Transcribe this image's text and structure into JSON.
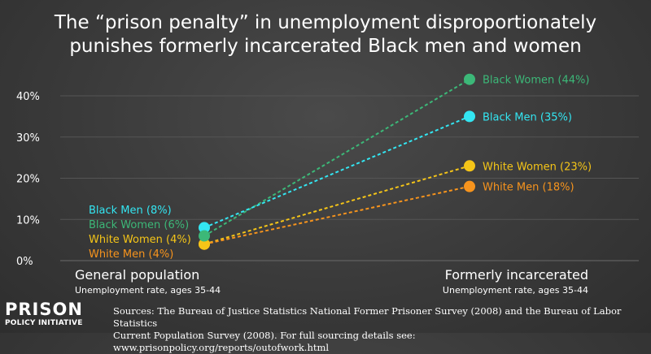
{
  "title_lines": [
    "The “prison penalty” in unemployment disproportionately",
    "punishes formerly incarcerated Black men and women"
  ],
  "chart_data": {
    "type": "line",
    "title": "The “prison penalty” in unemployment disproportionately punishes formerly incarcerated Black men and women",
    "ylim": [
      0,
      40
    ],
    "y_ticks": [
      "0%",
      "10%",
      "20%",
      "30%",
      "40%"
    ],
    "y_tick_values": [
      0,
      10,
      20,
      30,
      40
    ],
    "grid": true,
    "categories": [
      "General population",
      "Formerly incarcerated"
    ],
    "category_sublabels": [
      "Unemployment rate, ages 35-44",
      "Unemployment rate, ages 35-44"
    ],
    "series": [
      {
        "name": "Black Women",
        "color": "#3cb878",
        "values": [
          6,
          44
        ],
        "start_label": "Black Women (6%)",
        "end_label": "Black Women (44%)"
      },
      {
        "name": "Black Men",
        "color": "#33e6f2",
        "values": [
          8,
          35
        ],
        "start_label": "Black Men (8%)",
        "end_label": "Black Men (35%)"
      },
      {
        "name": "White Women",
        "color": "#f5c518",
        "values": [
          4,
          23
        ],
        "start_label": "White Women (4%)",
        "end_label": "White Women (23%)"
      },
      {
        "name": "White Men",
        "color": "#f7941d",
        "values": [
          4,
          18
        ],
        "start_label": "White Men (4%)",
        "end_label": "White Men (18%)"
      }
    ]
  },
  "sources_lines": [
    "Sources: The Bureau of Justice Statistics National Former Prisoner Survey (2008) and the Bureau of Labor Statistics",
    "Current Population Survey (2008). For full sourcing details see: www.prisonpolicy.org/reports/outofwork.html"
  ],
  "logo": {
    "top": "PRISON",
    "bottom": "POLICY INITIATIVE"
  }
}
